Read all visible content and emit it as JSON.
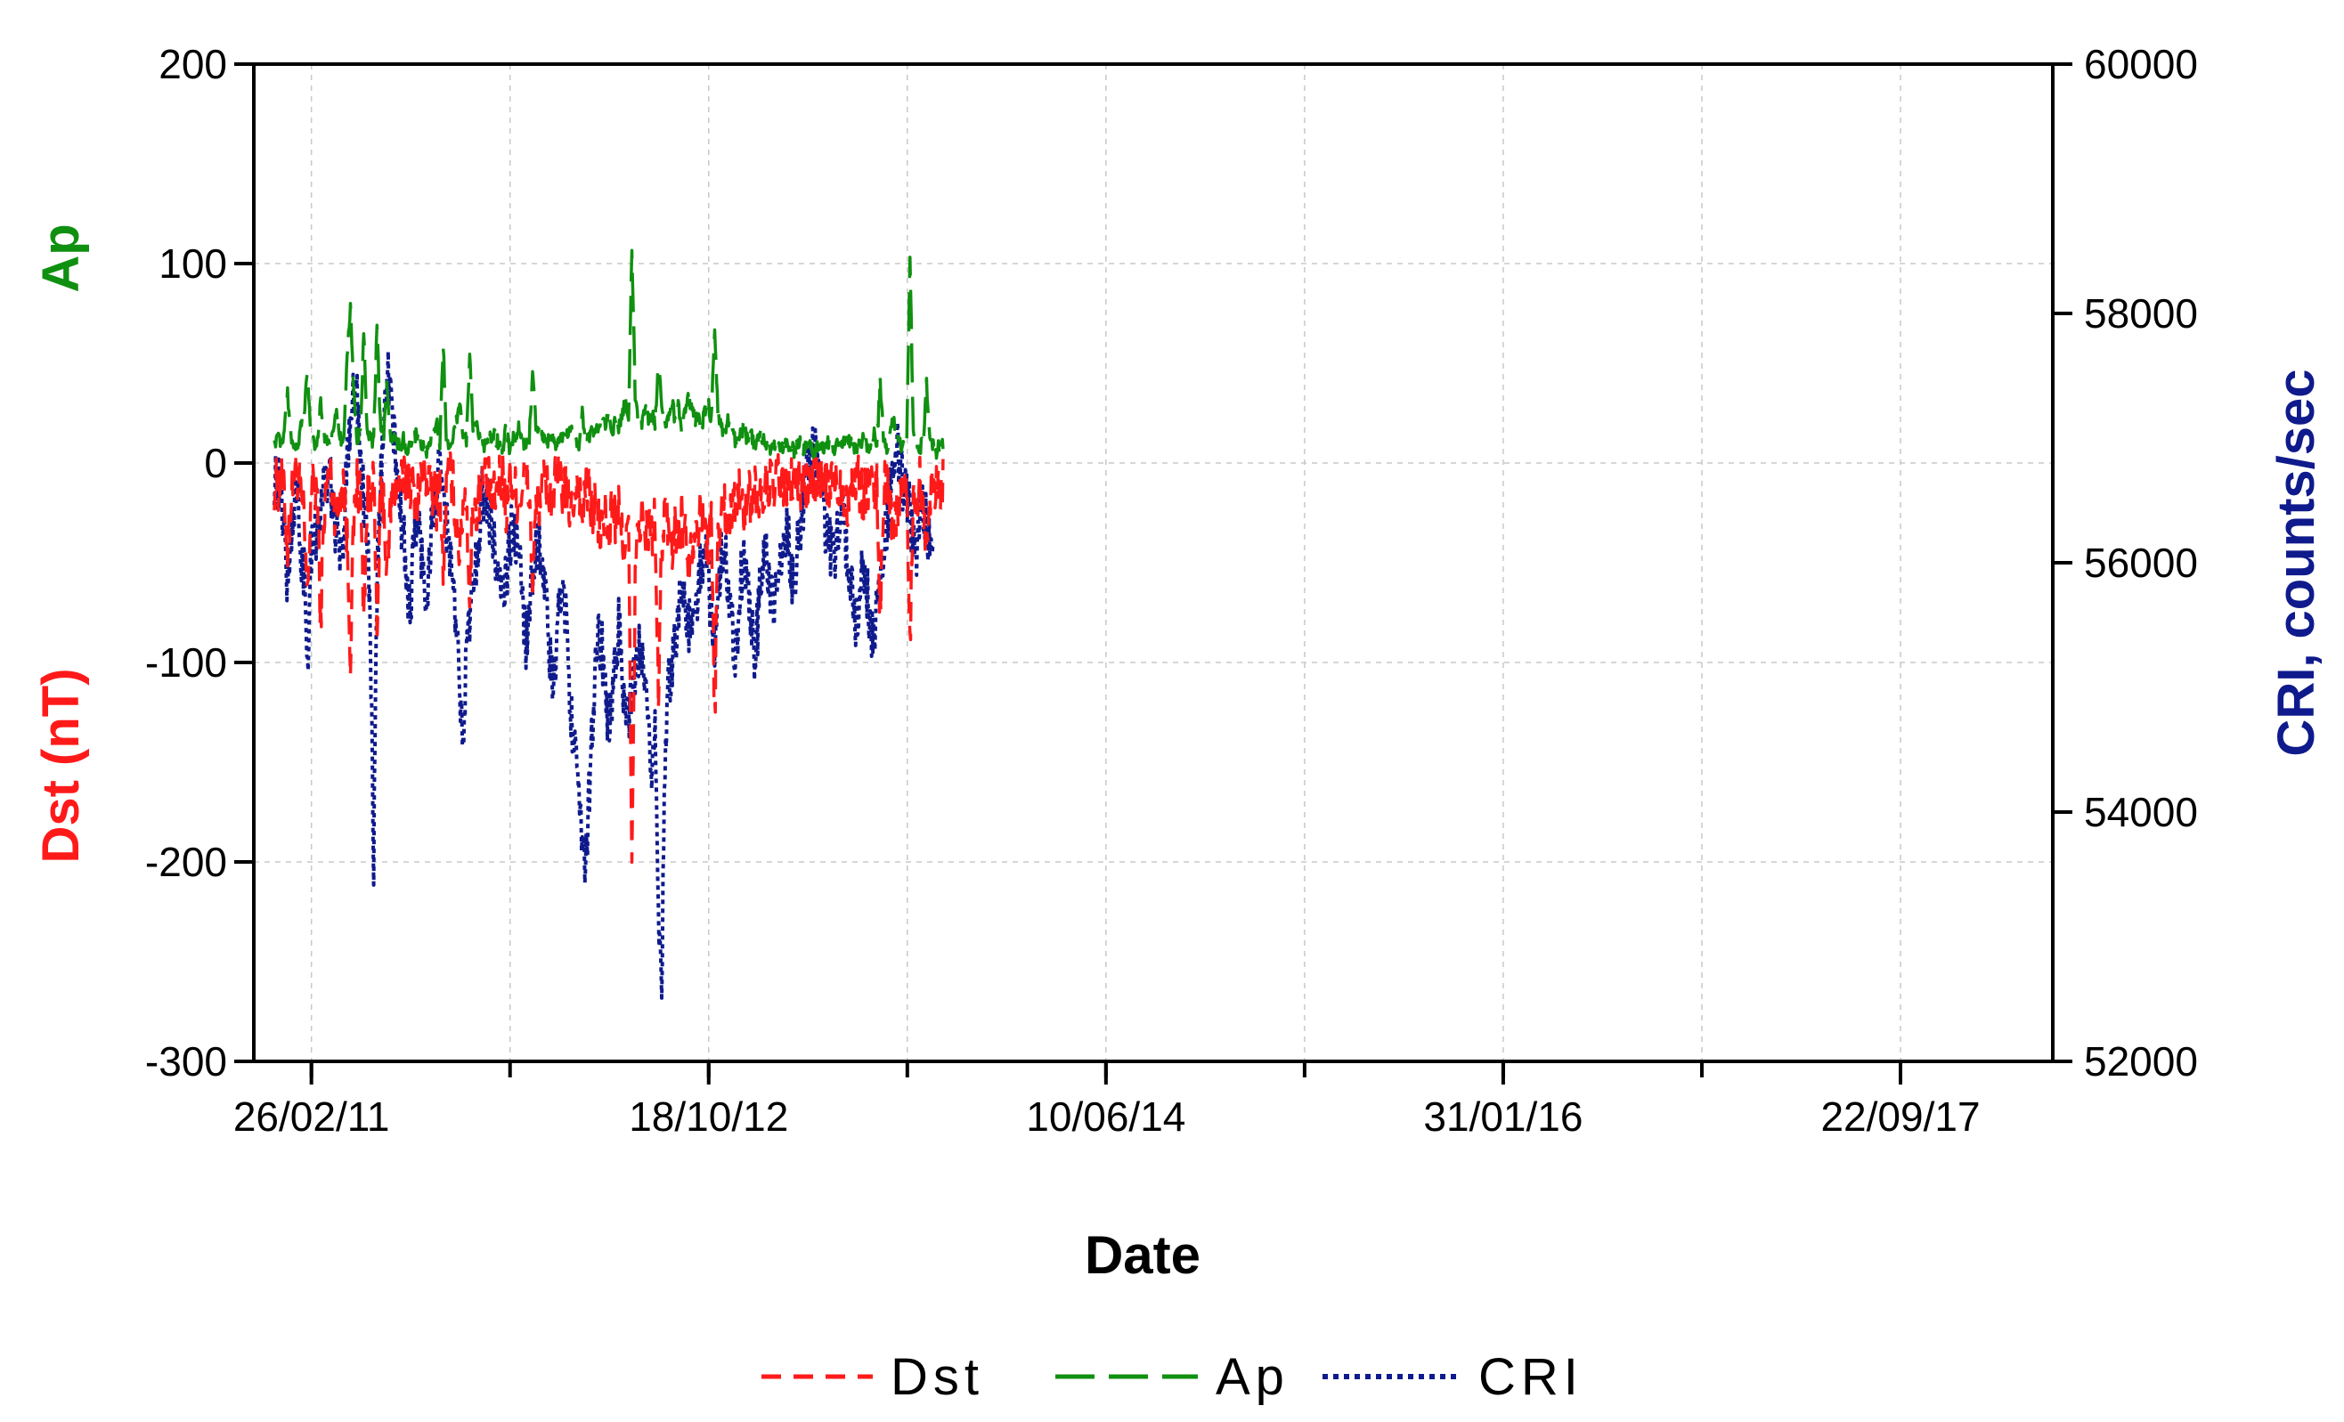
{
  "chart_data": {
    "type": "line",
    "xlabel": "Date",
    "x_ticks": [
      "26/02/11",
      "18/10/12",
      "10/06/14",
      "31/01/16",
      "22/09/17"
    ],
    "x_range": [
      "2010-12-01",
      "2018-05-10"
    ],
    "y_left": {
      "labels": [
        {
          "text": "Ap",
          "color": "#109010"
        },
        {
          "text": "Dst (nT)",
          "color": "#ff1a1a"
        }
      ],
      "ylim": [
        -300,
        200
      ],
      "ticks": [
        "200",
        "100",
        "0",
        "-100",
        "-200",
        "-300"
      ]
    },
    "y_right": {
      "label": "CRI, counts/sec",
      "color": "#0f1a8c",
      "ylim": [
        52000,
        60000
      ],
      "ticks": [
        "60000",
        "58000",
        "56000",
        "54000",
        "52000"
      ]
    },
    "grid": true,
    "series": [
      {
        "name": "Dst",
        "color": "#ff1a1a",
        "style": "dashed",
        "axis": "left",
        "start": "2011-01-01",
        "step_days": 5,
        "noise_amp": 14,
        "values": [
          -10,
          -12,
          -8,
          -15,
          -45,
          -20,
          -6,
          -5,
          -18,
          -30,
          -70,
          -18,
          -10,
          -15,
          -80,
          -25,
          -10,
          -5,
          -20,
          -30,
          -12,
          -8,
          -40,
          -95,
          -30,
          -10,
          -15,
          -75,
          -22,
          -12,
          -8,
          -90,
          -20,
          -15,
          -60,
          -25,
          -15,
          -10,
          -8,
          -12,
          -5,
          -10,
          -15,
          -20,
          -10,
          -8,
          -5,
          -12,
          -15,
          -20,
          -8,
          -60,
          -10,
          -5,
          -12,
          -30,
          -45,
          -20,
          -15,
          -70,
          -18,
          -25,
          -15,
          -10,
          -8,
          -12,
          -20,
          -15,
          -10,
          -5,
          -25,
          -8,
          -12,
          -15,
          -20,
          -10,
          -8,
          -15,
          -60,
          -25,
          -18,
          -12,
          -10,
          -15,
          -20,
          -8,
          -10,
          -12,
          -15,
          -20,
          -25,
          -10,
          -8,
          -30,
          -12,
          -15,
          -25,
          -20,
          -30,
          -35,
          -25,
          -40,
          -20,
          -30,
          -25,
          -35,
          -40,
          -30,
          -210,
          -60,
          -30,
          -25,
          -40,
          -30,
          -35,
          -30,
          -120,
          -40,
          -25,
          -30,
          -45,
          -30,
          -40,
          -25,
          -35,
          -45,
          -40,
          -30,
          -30,
          -25,
          -35,
          -40,
          -30,
          -130,
          -35,
          -25,
          -20,
          -30,
          -25,
          -18,
          -15,
          -20,
          -25,
          -15,
          -20,
          -12,
          -18,
          -22,
          -15,
          -10,
          -12,
          -15,
          -8,
          -10,
          -12,
          -15,
          -10,
          -8,
          -10,
          -12,
          -8,
          -15,
          -10,
          -8,
          -10,
          -12,
          -8,
          -15,
          -10,
          -8,
          -12,
          -10,
          -15,
          -20,
          -12,
          -10,
          -8,
          -12,
          -15,
          -10,
          -8,
          -20,
          -12,
          -75,
          -15,
          -10,
          -20,
          -30,
          -25,
          -12,
          -10,
          -15,
          -90,
          -20,
          -15,
          -10,
          -12,
          -50,
          -15,
          -10,
          -8,
          -12,
          -10
        ]
      },
      {
        "name": "Ap",
        "color": "#109010",
        "style": "long-dashed",
        "axis": "left",
        "start": "2011-01-01",
        "step_days": 5,
        "noise_amp": 12,
        "values": [
          8,
          12,
          10,
          15,
          35,
          12,
          8,
          6,
          20,
          25,
          45,
          15,
          10,
          12,
          30,
          15,
          10,
          8,
          20,
          25,
          12,
          10,
          55,
          80,
          35,
          12,
          15,
          65,
          18,
          12,
          10,
          70,
          20,
          12,
          38,
          15,
          12,
          10,
          8,
          12,
          6,
          10,
          12,
          15,
          10,
          8,
          6,
          12,
          15,
          22,
          8,
          60,
          10,
          6,
          12,
          20,
          28,
          15,
          12,
          55,
          18,
          20,
          12,
          10,
          8,
          12,
          15,
          12,
          10,
          6,
          18,
          8,
          12,
          15,
          18,
          10,
          8,
          12,
          45,
          18,
          15,
          12,
          10,
          12,
          15,
          8,
          10,
          12,
          12,
          15,
          18,
          10,
          8,
          25,
          12,
          12,
          18,
          15,
          20,
          22,
          18,
          25,
          15,
          22,
          18,
          25,
          30,
          22,
          108,
          35,
          22,
          20,
          28,
          22,
          25,
          20,
          50,
          30,
          18,
          22,
          32,
          22,
          28,
          18,
          25,
          32,
          28,
          22,
          22,
          18,
          25,
          30,
          22,
          70,
          25,
          18,
          15,
          22,
          18,
          12,
          10,
          15,
          18,
          10,
          15,
          8,
          12,
          15,
          10,
          8,
          8,
          10,
          6,
          8,
          8,
          10,
          8,
          6,
          8,
          10,
          6,
          10,
          8,
          6,
          8,
          10,
          6,
          10,
          8,
          6,
          10,
          8,
          12,
          15,
          10,
          8,
          6,
          10,
          12,
          8,
          6,
          15,
          10,
          40,
          12,
          8,
          15,
          22,
          18,
          10,
          8,
          12,
          104,
          15,
          12,
          8,
          10,
          40,
          12,
          8,
          6,
          10,
          8
        ]
      },
      {
        "name": "CRI",
        "color": "#0f1a8c",
        "style": "dotted",
        "axis": "right",
        "start": "2011-01-01",
        "step_days": 5,
        "noise_amp": 250,
        "values": [
          56700,
          56650,
          56500,
          56300,
          55800,
          56200,
          56500,
          56600,
          55900,
          56000,
          55200,
          56100,
          56300,
          56200,
          56500,
          56600,
          56700,
          56600,
          56400,
          56200,
          56000,
          56300,
          56900,
          57200,
          57400,
          57300,
          56800,
          56500,
          56200,
          55500,
          53500,
          55800,
          56600,
          57000,
          57600,
          57400,
          57000,
          56800,
          56400,
          56200,
          55900,
          55600,
          56100,
          56300,
          56200,
          55900,
          55700,
          56100,
          56400,
          56600,
          56700,
          56500,
          56300,
          56100,
          55800,
          55400,
          55000,
          54700,
          55200,
          55600,
          55800,
          56000,
          56300,
          56600,
          56500,
          56400,
          56200,
          56000,
          55800,
          55700,
          55900,
          56100,
          56300,
          56200,
          56000,
          55700,
          55400,
          55600,
          55900,
          56100,
          56200,
          56000,
          55700,
          55300,
          55000,
          55200,
          55600,
          55900,
          55600,
          55100,
          54700,
          54400,
          54000,
          53800,
          53600,
          54100,
          54700,
          55100,
          55400,
          55300,
          55000,
          54700,
          54800,
          55200,
          55500,
          55200,
          54800,
          54700,
          54900,
          55100,
          55300,
          55200,
          54900,
          54600,
          54400,
          54700,
          53300,
          52600,
          54300,
          55000,
          55200,
          55400,
          55600,
          55800,
          55700,
          55500,
          55400,
          55600,
          55800,
          56000,
          56100,
          55900,
          55600,
          55400,
          55700,
          56000,
          56100,
          55900,
          55600,
          55300,
          55500,
          55900,
          56000,
          55800,
          55500,
          55300,
          55500,
          55900,
          56100,
          56000,
          55800,
          55600,
          55800,
          56100,
          56300,
          56200,
          56000,
          55800,
          56100,
          56300,
          56500,
          56700,
          56800,
          56900,
          56800,
          56600,
          56400,
          56200,
          56100,
          56000,
          56200,
          56400,
          56300,
          56100,
          55900,
          55700,
          55500,
          55800,
          56000,
          55800,
          55500,
          55300,
          55600,
          55900,
          56100,
          56300,
          56600,
          56800,
          56900,
          56800,
          56600,
          56500,
          56400,
          56200,
          56100,
          56300,
          56400,
          56300,
          56200,
          56100
        ]
      }
    ],
    "legend": {
      "position": "bottom",
      "entries": [
        {
          "label": "Dst",
          "color": "#ff1a1a",
          "style": "dashed"
        },
        {
          "label": "Ap",
          "color": "#109010",
          "style": "long-dashed"
        },
        {
          "label": "CRI",
          "color": "#0f1a8c",
          "style": "dotted"
        }
      ]
    }
  }
}
